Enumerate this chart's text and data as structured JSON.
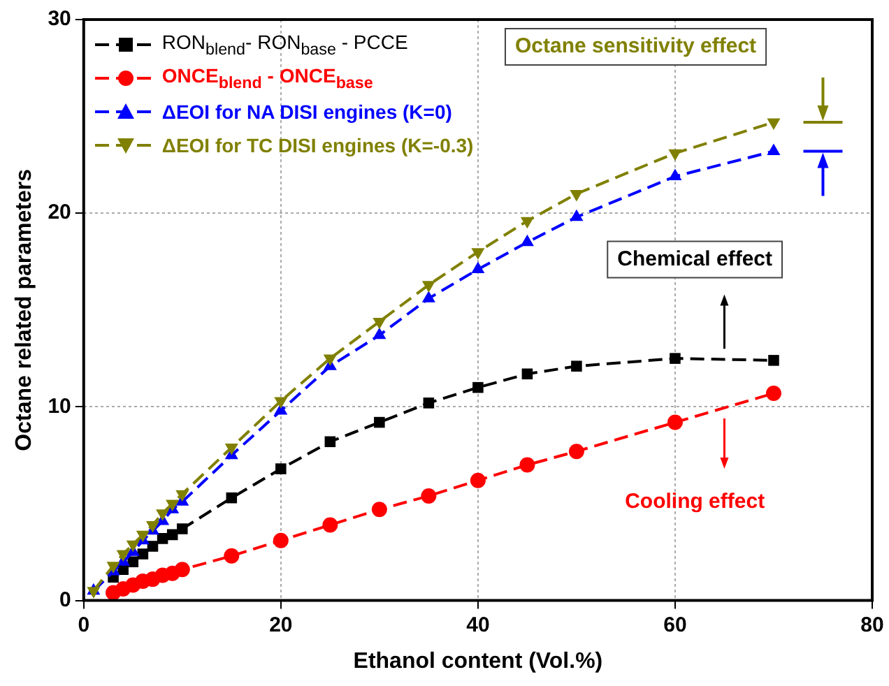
{
  "chart_data": {
    "type": "line",
    "xlabel": "Ethanol content (Vol.%)",
    "ylabel": "Octane related parameters",
    "xlim": [
      0,
      80
    ],
    "xticks": [
      0,
      20,
      40,
      60,
      80
    ],
    "ylim": [
      0,
      30
    ],
    "yticks": [
      0,
      10,
      20,
      30
    ],
    "grid": true,
    "legend": "top left",
    "line_style": "dashed",
    "series": [
      {
        "name": "RON$_{blend}$- RON$_{base}$ - PCCE",
        "color": "#000000",
        "marker": "square",
        "x": [
          3,
          4,
          5,
          6,
          7,
          8,
          9,
          10,
          15,
          20,
          25,
          30,
          35,
          40,
          45,
          50,
          60,
          70
        ],
        "values": [
          1.2,
          1.6,
          2.0,
          2.4,
          2.8,
          3.2,
          3.4,
          3.7,
          5.3,
          6.8,
          8.2,
          9.2,
          10.2,
          11.0,
          11.7,
          12.1,
          12.5,
          12.4
        ]
      },
      {
        "name": "ONCE$_{blend}$ - ONCE$_{base}$",
        "color": "#ff0000",
        "marker": "circle",
        "x": [
          3,
          4,
          5,
          6,
          7,
          8,
          9,
          10,
          15,
          20,
          25,
          30,
          35,
          40,
          45,
          50,
          60,
          70
        ],
        "values": [
          0.4,
          0.6,
          0.8,
          1.0,
          1.1,
          1.3,
          1.4,
          1.6,
          2.3,
          3.1,
          3.9,
          4.7,
          5.4,
          6.2,
          7.0,
          7.7,
          9.2,
          10.7
        ]
      },
      {
        "name": "ΔEOI for NA DISI engines (K=0)",
        "color": "#0000ff",
        "marker": "triangle",
        "x": [
          1,
          3,
          4,
          5,
          6,
          7,
          8,
          9,
          10,
          15,
          20,
          25,
          30,
          35,
          40,
          45,
          50,
          60,
          70
        ],
        "values": [
          0.5,
          1.5,
          2.0,
          2.5,
          3.1,
          3.6,
          4.1,
          4.7,
          5.1,
          7.5,
          9.8,
          12.1,
          13.7,
          15.6,
          17.1,
          18.5,
          19.8,
          21.9,
          23.2
        ]
      },
      {
        "name": "ΔEOI for TC DISI engines (K=-0.3)",
        "color": "#808000",
        "marker": "triangle-down",
        "x": [
          1,
          3,
          4,
          5,
          6,
          7,
          8,
          9,
          10,
          15,
          20,
          25,
          30,
          35,
          40,
          45,
          50,
          60,
          70
        ],
        "values": [
          0.5,
          1.8,
          2.4,
          2.9,
          3.4,
          3.9,
          4.5,
          5.0,
          5.5,
          7.9,
          10.3,
          12.5,
          14.4,
          16.3,
          18.0,
          19.6,
          21.0,
          23.1,
          24.7
        ]
      }
    ],
    "annotations": [
      "Octane sensitivity effect",
      "Chemical effect",
      "Cooling effect"
    ]
  }
}
